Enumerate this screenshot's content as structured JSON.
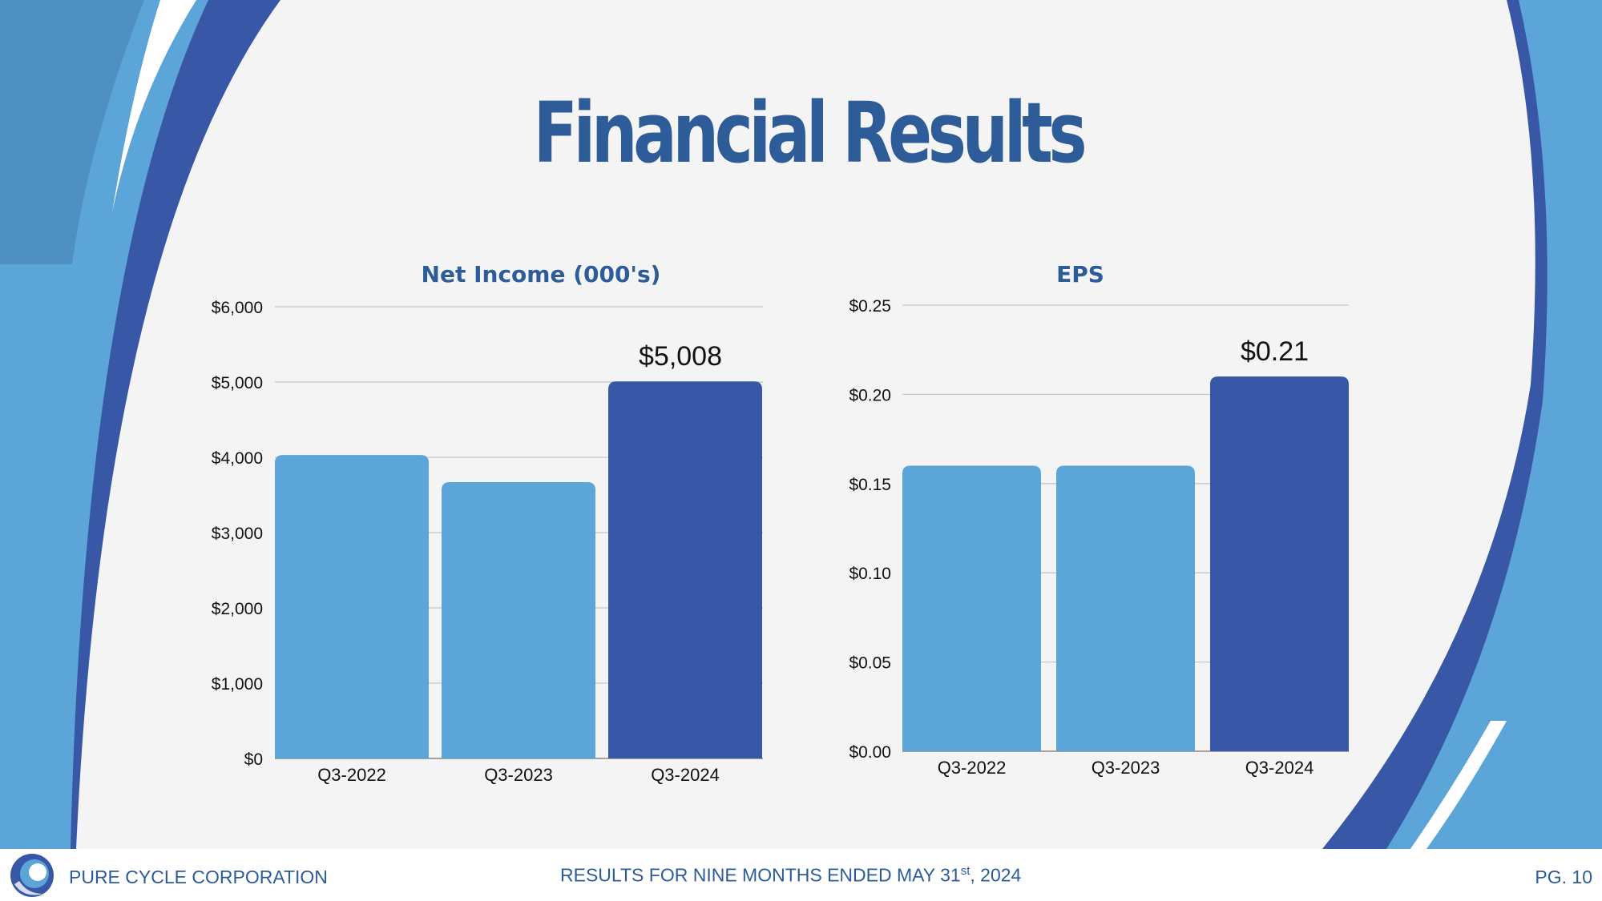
{
  "title": "Financial Results",
  "colors": {
    "title": "#2d5c99",
    "bar_light": "#5ba5d8",
    "bar_dark": "#3857a6",
    "bg_light_blue": "#5ba5d8",
    "bg_dark_blue": "#3857a6"
  },
  "chart_data": [
    {
      "type": "bar",
      "title": "Net Income (000's)",
      "categories": [
        "Q3-2022",
        "Q3-2023",
        "Q3-2024"
      ],
      "values": [
        4030,
        3670,
        5008
      ],
      "ylim": [
        0,
        6000
      ],
      "yticks": [
        "$0",
        "$1,000",
        "$2,000",
        "$3,000",
        "$4,000",
        "$5,000",
        "$6,000"
      ],
      "data_labels": [
        "",
        "",
        "$5,008"
      ],
      "grid": true
    },
    {
      "type": "bar",
      "title": "EPS",
      "categories": [
        "Q3-2022",
        "Q3-2023",
        "Q3-2024"
      ],
      "values": [
        0.16,
        0.16,
        0.21
      ],
      "ylim": [
        0,
        0.25
      ],
      "yticks": [
        "$0.00",
        "$0.05",
        "$0.10",
        "$0.15",
        "$0.20",
        "$0.25"
      ],
      "data_labels": [
        "",
        "",
        "$0.21"
      ],
      "grid": true
    }
  ],
  "footer": {
    "company": "PURE CYCLE CORPORATION",
    "results_main": "RESULTS FOR NINE MONTHS ENDED MAY 31",
    "results_sup": "st",
    "results_year": ", 2024",
    "page": "PG. 10"
  },
  "icons": {
    "logo": "pure-cycle-logo-icon"
  }
}
